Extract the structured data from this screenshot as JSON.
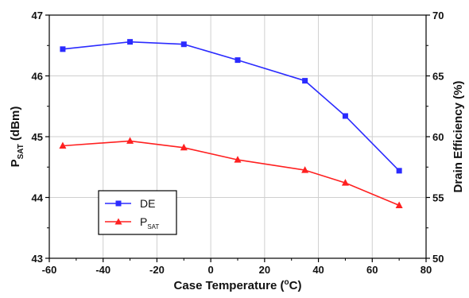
{
  "chart_data": {
    "type": "line",
    "x": [
      -55,
      -30,
      -10,
      10,
      35,
      50,
      70
    ],
    "xlabel_main": "Case Temperature (",
    "xlabel_sup": "o",
    "xlabel_end": "C)",
    "ylabel_left_main": "P",
    "ylabel_left_sub": "SAT",
    "ylabel_left_end": " (dBm)",
    "ylabel_right": "Drain Efficiency (%)",
    "xlim": [
      -60,
      80
    ],
    "ylim_left": [
      43,
      47
    ],
    "ylim_right": [
      50,
      70
    ],
    "x_ticks": [
      -60,
      -40,
      -20,
      0,
      20,
      40,
      60,
      80
    ],
    "y_left_ticks": [
      43,
      44,
      45,
      46,
      47
    ],
    "y_right_ticks": [
      50,
      55,
      60,
      65,
      70
    ],
    "grid": true,
    "legend_position": "bottom-left",
    "series": [
      {
        "name": "DE",
        "axis": "right",
        "marker": "square",
        "color": "#2b2bff",
        "values": [
          67.2,
          67.8,
          67.6,
          66.3,
          64.6,
          61.7,
          57.2
        ]
      },
      {
        "name_main": "P",
        "name_sub": "SAT",
        "axis": "left",
        "marker": "triangle",
        "color": "#ff2020",
        "values": [
          44.85,
          44.93,
          44.82,
          44.62,
          44.45,
          44.24,
          43.87
        ]
      }
    ]
  }
}
